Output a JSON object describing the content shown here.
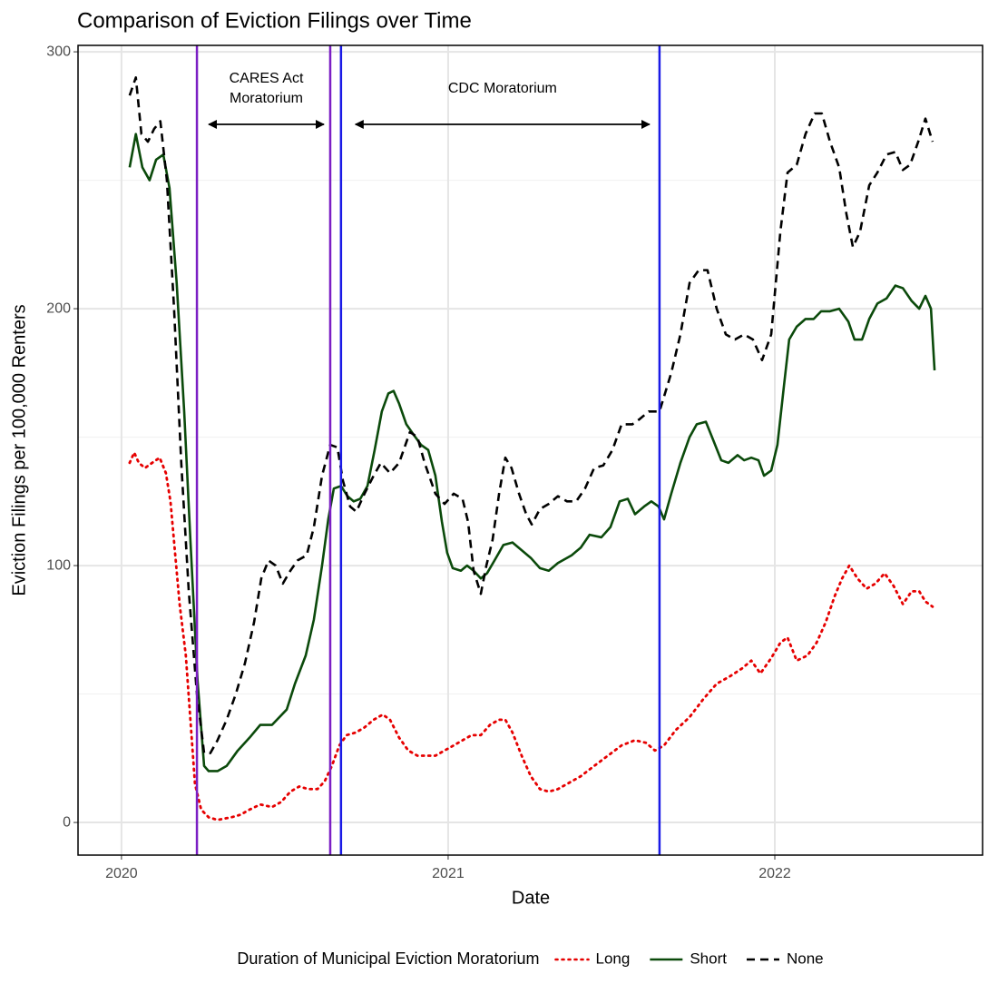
{
  "chart_data": {
    "type": "line",
    "title": "Comparison of Eviction Filings over Time",
    "x_label": "Date",
    "y_label": "Eviction Filings per 100,000 Renters",
    "xlim": [
      2019.867,
      2022.636
    ],
    "xticks": [
      2020,
      2021,
      2022
    ],
    "ylim": [
      -12.7,
      302.5
    ],
    "yticks": [
      0,
      100,
      200,
      300
    ],
    "yminor": [
      50,
      150,
      250
    ],
    "grid": true,
    "legend_title": "Duration of Municipal Eviction Moratorium",
    "legend_position": "bottom",
    "vlines": [
      {
        "x": 2020.231,
        "color": "#7b1fc4"
      },
      {
        "x": 2020.639,
        "color": "#7b1fc4"
      },
      {
        "x": 2020.672,
        "color": "#1a1ae6"
      },
      {
        "x": 2021.647,
        "color": "#1a1ae6"
      }
    ],
    "annotations": [
      {
        "lines": [
          "CARES Act",
          "Moratorium"
        ]
      },
      {
        "lines": [
          "CDC Moratorium"
        ]
      }
    ],
    "series": [
      {
        "name": "Long",
        "color": "#e60000",
        "dash": "dotted",
        "x": [
          2020.025,
          2020.039,
          2020.053,
          2020.072,
          2020.094,
          2020.117,
          2020.136,
          2020.15,
          2020.164,
          2020.178,
          2020.197,
          2020.211,
          2020.225,
          2020.244,
          2020.267,
          2020.294,
          2020.336,
          2020.364,
          2020.392,
          2020.425,
          2020.461,
          2020.489,
          2020.517,
          2020.544,
          2020.572,
          2020.6,
          2020.622,
          2020.644,
          2020.667,
          2020.689,
          2020.717,
          2020.744,
          2020.772,
          2020.8,
          2020.822,
          2020.85,
          2020.878,
          2020.906,
          2020.933,
          2020.961,
          2020.989,
          2021.017,
          2021.044,
          2021.072,
          2021.1,
          2021.128,
          2021.156,
          2021.175,
          2021.197,
          2021.225,
          2021.253,
          2021.281,
          2021.308,
          2021.336,
          2021.364,
          2021.406,
          2021.447,
          2021.489,
          2021.531,
          2021.572,
          2021.606,
          2021.633,
          2021.661,
          2021.697,
          2021.739,
          2021.781,
          2021.822,
          2021.864,
          2021.9,
          2021.928,
          2021.956,
          2021.989,
          2022.017,
          2022.039,
          2022.067,
          2022.1,
          2022.128,
          2022.156,
          2022.183,
          2022.206,
          2022.228,
          2022.253,
          2022.281,
          2022.308,
          2022.336,
          2022.364,
          2022.392,
          2022.419,
          2022.442,
          2022.461,
          2022.483
        ],
        "values": [
          140,
          144,
          140,
          138,
          140,
          142,
          136,
          125,
          105,
          85,
          65,
          40,
          15,
          5,
          2,
          1,
          2,
          3,
          5,
          7,
          6,
          8,
          12,
          14,
          13,
          13,
          16,
          22,
          30,
          34,
          35,
          37,
          40,
          42,
          40,
          33,
          28,
          26,
          26,
          26,
          28,
          30,
          32,
          34,
          34,
          38,
          40,
          40,
          35,
          26,
          18,
          13,
          12,
          13,
          15,
          18,
          22,
          26,
          30,
          32,
          31,
          28,
          30,
          36,
          41,
          48,
          54,
          57,
          60,
          63,
          58,
          64,
          70,
          72,
          63,
          65,
          70,
          78,
          88,
          95,
          100,
          95,
          91,
          93,
          97,
          92,
          85,
          90,
          90,
          86,
          84
        ]
      },
      {
        "name": "Short",
        "color": "#0b4a0b",
        "dash": "solid",
        "x": [
          2020.025,
          2020.044,
          2020.064,
          2020.086,
          2020.106,
          2020.128,
          2020.147,
          2020.169,
          2020.192,
          2020.211,
          2020.233,
          2020.253,
          2020.267,
          2020.294,
          2020.322,
          2020.356,
          2020.392,
          2020.425,
          2020.461,
          2020.506,
          2020.531,
          2020.564,
          2020.589,
          2020.614,
          2020.633,
          2020.65,
          2020.672,
          2020.692,
          2020.711,
          2020.731,
          2020.753,
          2020.775,
          2020.797,
          2020.817,
          2020.833,
          2020.85,
          2020.872,
          2020.894,
          2020.917,
          2020.939,
          2020.961,
          2020.981,
          2020.997,
          2021.014,
          2021.039,
          2021.058,
          2021.078,
          2021.1,
          2021.119,
          2021.142,
          2021.169,
          2021.197,
          2021.225,
          2021.253,
          2021.281,
          2021.308,
          2021.336,
          2021.378,
          2021.406,
          2021.433,
          2021.469,
          2021.497,
          2021.525,
          2021.55,
          2021.572,
          2021.6,
          2021.622,
          2021.644,
          2021.661,
          2021.683,
          2021.711,
          2021.739,
          2021.761,
          2021.789,
          2021.811,
          2021.836,
          2021.858,
          2021.886,
          2021.906,
          2021.928,
          2021.95,
          2021.967,
          2021.989,
          2022.008,
          2022.028,
          2022.044,
          2022.067,
          2022.094,
          2022.119,
          2022.142,
          2022.169,
          2022.197,
          2022.225,
          2022.244,
          2022.267,
          2022.289,
          2022.314,
          2022.342,
          2022.369,
          2022.392,
          2022.419,
          2022.442,
          2022.461,
          2022.478,
          2022.489
        ],
        "values": [
          255,
          268,
          255,
          250,
          258,
          260,
          247,
          210,
          160,
          110,
          55,
          22,
          20,
          20,
          22,
          28,
          33,
          38,
          38,
          44,
          54,
          65,
          79,
          100,
          118,
          130,
          131,
          127,
          125,
          126,
          131,
          145,
          160,
          167,
          168,
          163,
          155,
          151,
          147,
          145,
          135,
          117,
          105,
          99,
          98,
          100,
          98,
          95,
          97,
          102,
          108,
          109,
          106,
          103,
          99,
          98,
          101,
          104,
          107,
          112,
          111,
          115,
          125,
          126,
          120,
          123,
          125,
          123,
          118,
          128,
          140,
          150,
          155,
          156,
          149,
          141,
          140,
          143,
          141,
          142,
          141,
          135,
          137,
          147,
          170,
          188,
          193,
          196,
          196,
          199,
          199,
          200,
          195,
          188,
          188,
          196,
          202,
          204,
          209,
          208,
          203,
          200,
          205,
          200,
          176
        ]
      },
      {
        "name": "None",
        "color": "#000000",
        "dash": "dashed",
        "x": [
          2020.025,
          2020.044,
          2020.061,
          2020.081,
          2020.1,
          2020.119,
          2020.139,
          2020.161,
          2020.183,
          2020.206,
          2020.231,
          2020.253,
          2020.272,
          2020.294,
          2020.322,
          2020.35,
          2020.378,
          2020.406,
          2020.428,
          2020.45,
          2020.472,
          2020.494,
          2020.517,
          2020.539,
          2020.567,
          2020.589,
          2020.614,
          2020.639,
          2020.661,
          2020.678,
          2020.7,
          2020.719,
          2020.744,
          2020.772,
          2020.794,
          2020.822,
          2020.85,
          2020.883,
          2020.906,
          2020.928,
          2020.961,
          2020.989,
          2021.017,
          2021.044,
          2021.061,
          2021.078,
          2021.1,
          2021.117,
          2021.136,
          2021.156,
          2021.175,
          2021.194,
          2021.217,
          2021.239,
          2021.256,
          2021.281,
          2021.308,
          2021.336,
          2021.364,
          2021.392,
          2021.419,
          2021.447,
          2021.475,
          2021.503,
          2021.531,
          2021.564,
          2021.586,
          2021.614,
          2021.647,
          2021.683,
          2021.711,
          2021.739,
          2021.767,
          2021.794,
          2021.822,
          2021.85,
          2021.878,
          2021.906,
          2021.933,
          2021.961,
          2021.989,
          2022.017,
          2022.039,
          2022.067,
          2022.094,
          2022.122,
          2022.144,
          2022.169,
          2022.197,
          2022.219,
          2022.239,
          2022.261,
          2022.289,
          2022.314,
          2022.342,
          2022.369,
          2022.392,
          2022.414,
          2022.439,
          2022.461,
          2022.483
        ],
        "values": [
          283,
          290,
          268,
          265,
          270,
          273,
          250,
          200,
          140,
          90,
          50,
          27,
          27,
          32,
          40,
          50,
          62,
          78,
          95,
          102,
          100,
          93,
          98,
          102,
          104,
          115,
          135,
          147,
          146,
          133,
          123,
          121,
          128,
          135,
          140,
          136,
          140,
          152,
          150,
          140,
          128,
          124,
          128,
          126,
          117,
          98,
          89,
          100,
          110,
          128,
          142,
          138,
          128,
          120,
          116,
          122,
          124,
          127,
          125,
          125,
          130,
          138,
          139,
          145,
          155,
          155,
          157,
          160,
          160,
          175,
          190,
          210,
          215,
          215,
          200,
          190,
          188,
          190,
          188,
          180,
          190,
          230,
          253,
          256,
          268,
          276,
          276,
          265,
          255,
          237,
          224,
          230,
          248,
          253,
          260,
          261,
          254,
          256,
          265,
          274,
          265
        ]
      }
    ]
  }
}
